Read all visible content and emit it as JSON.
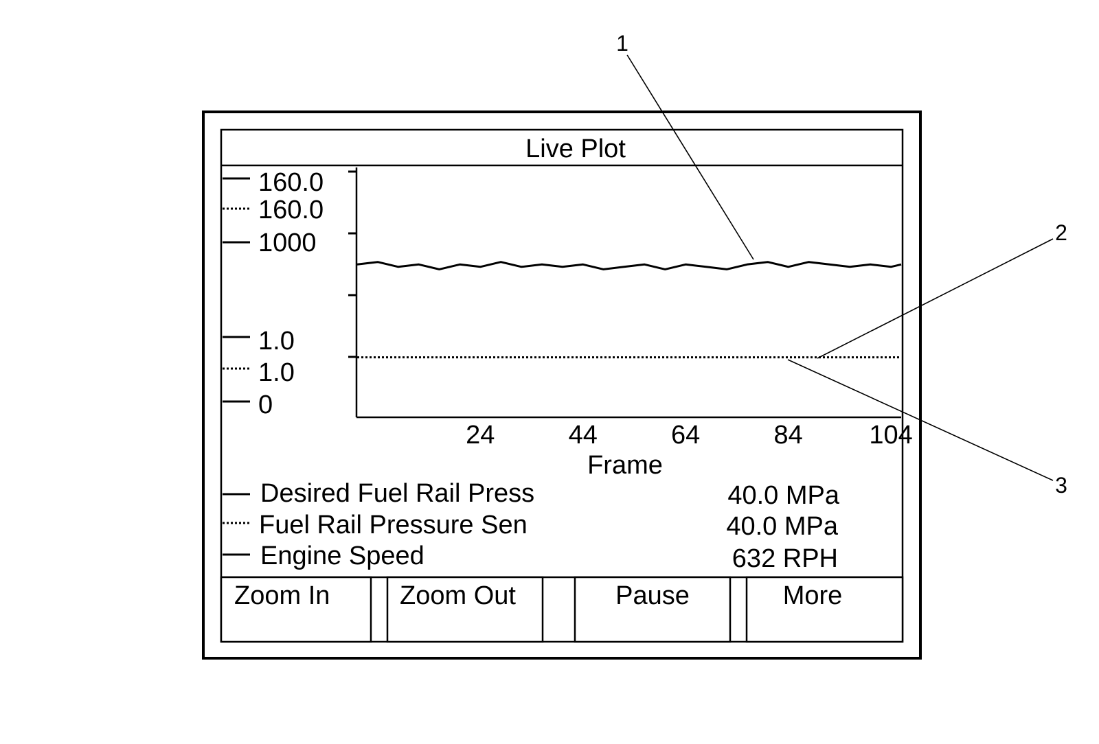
{
  "screen": {
    "title": "Live Plot",
    "left_scale": {
      "labels": [
        "160.0",
        "160.0",
        "1000",
        "1.0",
        "1.0",
        "0"
      ],
      "styles": [
        "solid",
        "dotted",
        "solid",
        "solid",
        "dotted",
        "solid"
      ]
    },
    "buttons": [
      "Zoom In",
      "Zoom Out",
      "Pause",
      "More"
    ]
  },
  "callouts": [
    "1",
    "2",
    "3"
  ],
  "chart_data": {
    "type": "line",
    "xlabel": "Frame",
    "x_ticks": [
      "24",
      "44",
      "64",
      "84",
      "104"
    ],
    "xlim": [
      0,
      106
    ],
    "y_range_normalized": [
      0,
      1
    ],
    "series": [
      {
        "name": "Desired Fuel Rail Press",
        "style": "solid",
        "value": "40.0 MPa",
        "x": [
          0,
          4,
          8,
          12,
          16,
          20,
          24,
          28,
          32,
          36,
          40,
          44,
          48,
          52,
          56,
          60,
          64,
          68,
          72,
          76,
          80,
          84,
          88,
          92,
          96,
          100,
          104,
          106
        ],
        "y": [
          0.62,
          0.63,
          0.61,
          0.62,
          0.6,
          0.62,
          0.61,
          0.63,
          0.61,
          0.62,
          0.61,
          0.62,
          0.6,
          0.61,
          0.62,
          0.6,
          0.62,
          0.61,
          0.6,
          0.62,
          0.63,
          0.61,
          0.63,
          0.62,
          0.61,
          0.62,
          0.61,
          0.62
        ]
      },
      {
        "name": "Fuel Rail Pressure Sen",
        "style": "dotted",
        "value": "40.0 MPa",
        "x": [
          0,
          106
        ],
        "y": [
          0.24,
          0.24
        ]
      },
      {
        "name": "Engine Speed",
        "style": "solid",
        "value": "632 RPH",
        "x": [],
        "y": []
      }
    ]
  }
}
